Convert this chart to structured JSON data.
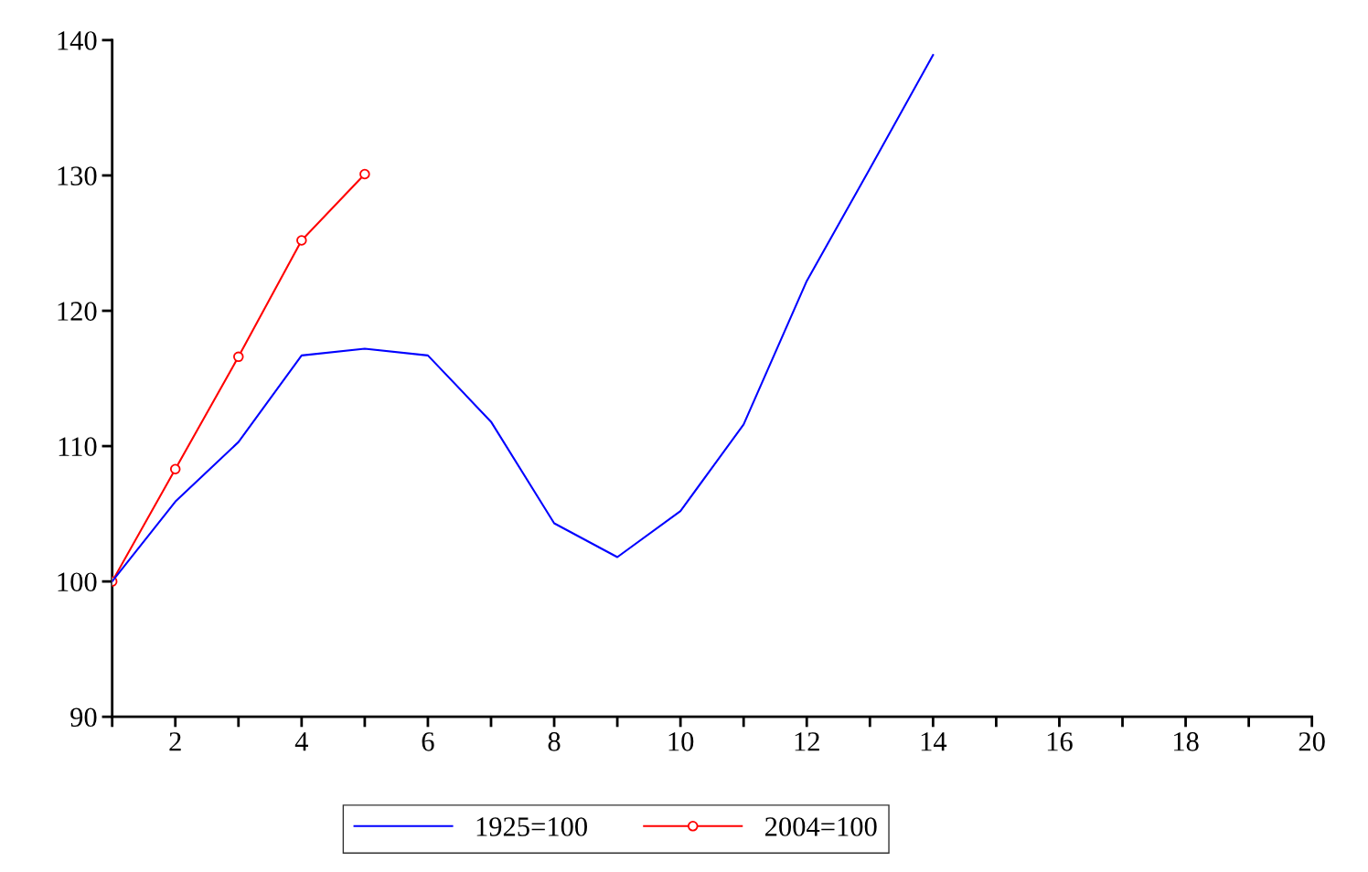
{
  "chart_data": {
    "type": "line",
    "x": [
      1,
      2,
      3,
      4,
      5,
      6,
      7,
      8,
      9,
      10,
      11,
      12,
      13,
      14
    ],
    "series": [
      {
        "name": "1925=100",
        "color": "#0000ff",
        "marker": "none",
        "values": [
          100,
          105.9,
          110.3,
          116.7,
          117.2,
          116.7,
          111.8,
          104.3,
          101.8,
          105.2,
          111.6,
          122.2,
          130.5,
          138.9
        ]
      },
      {
        "name": "2004=100",
        "color": "#ff0000",
        "marker": "circle",
        "x": [
          1,
          2,
          3,
          4,
          5
        ],
        "values": [
          100,
          108.3,
          116.6,
          125.2,
          130.1
        ]
      }
    ],
    "xlim": [
      1,
      20
    ],
    "xticks": [
      {
        "value": 1,
        "label": null
      },
      2,
      {
        "value": 3,
        "label": null
      },
      4,
      {
        "value": 5,
        "label": null
      },
      6,
      {
        "value": 7,
        "label": null
      },
      8,
      {
        "value": 9,
        "label": null
      },
      10,
      {
        "value": 11,
        "label": null
      },
      12,
      {
        "value": 13,
        "label": null
      },
      14,
      {
        "value": 15,
        "label": null
      },
      16,
      {
        "value": 17,
        "label": null
      },
      18,
      {
        "value": 19,
        "label": null
      },
      20
    ],
    "ylim": [
      90,
      140
    ],
    "yticks": [
      90,
      100,
      110,
      120,
      130,
      140
    ],
    "grid": false,
    "legend": "bottom"
  }
}
